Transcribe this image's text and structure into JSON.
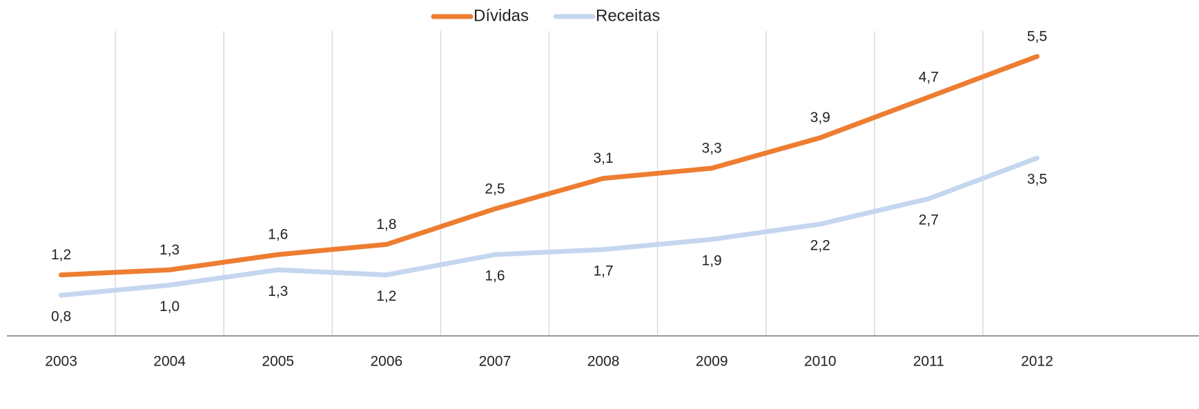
{
  "chart_data": {
    "type": "line",
    "categories": [
      "2003",
      "2004",
      "2005",
      "2006",
      "2007",
      "2008",
      "2009",
      "2010",
      "2011",
      "2012"
    ],
    "series": [
      {
        "name": "Dívidas",
        "color": "#ed7d31",
        "values": [
          1.2,
          1.3,
          1.6,
          1.8,
          2.5,
          3.1,
          3.3,
          3.9,
          4.7,
          5.5
        ],
        "value_labels": [
          "1,2",
          "1,3",
          "1,6",
          "1,8",
          "2,5",
          "3,1",
          "3,3",
          "3,9",
          "4,7",
          "5,5"
        ]
      },
      {
        "name": "Receitas",
        "color": "#c5d6ef",
        "values": [
          0.8,
          1.0,
          1.3,
          1.2,
          1.6,
          1.7,
          1.9,
          2.2,
          2.7,
          3.5
        ],
        "value_labels": [
          "0,8",
          "1,0",
          "1,3",
          "1,2",
          "1,6",
          "1,7",
          "1,9",
          "2,2",
          "2,7",
          "3,5"
        ]
      }
    ],
    "ylim": [
      0,
      6
    ],
    "legend": "top"
  }
}
